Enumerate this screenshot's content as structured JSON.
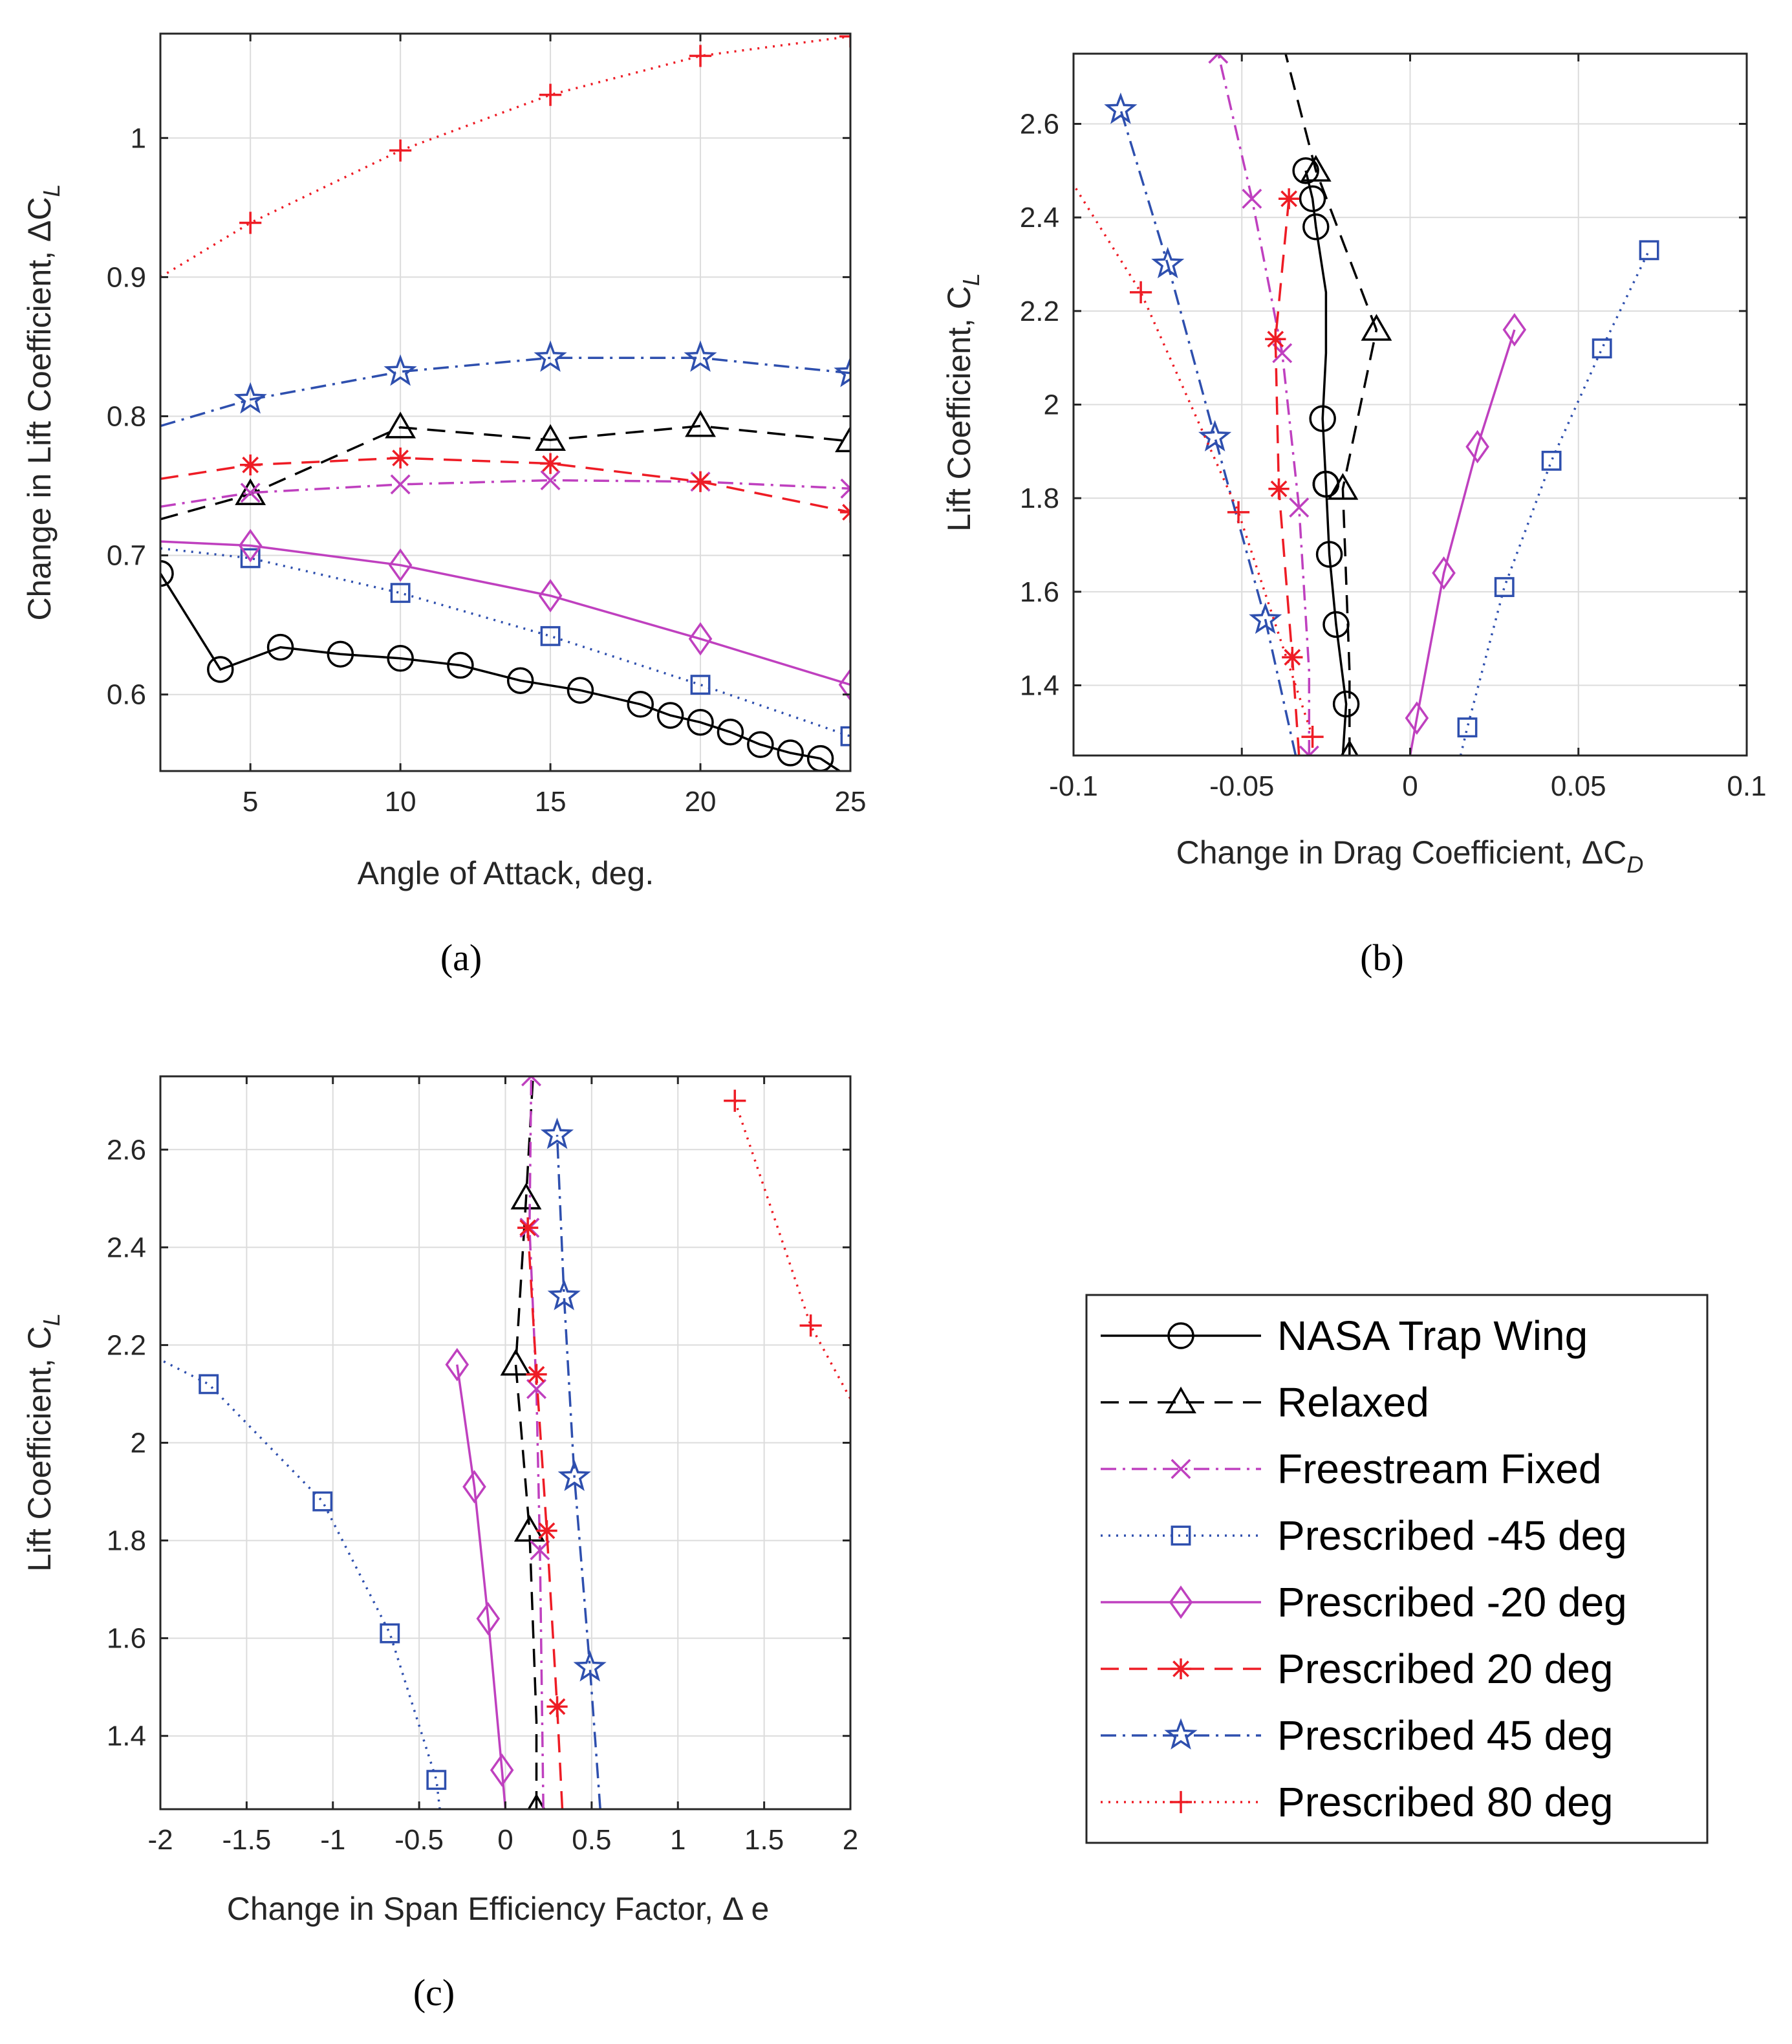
{
  "legend": {
    "entries": [
      {
        "key": "nasa",
        "label": "NASA Trap Wing"
      },
      {
        "key": "relax",
        "label": "Relaxed"
      },
      {
        "key": "ff",
        "label": "Freestream Fixed"
      },
      {
        "key": "pm45",
        "label": "Prescribed -45 deg"
      },
      {
        "key": "pm20",
        "label": "Prescribed -20 deg"
      },
      {
        "key": "p20",
        "label": "Prescribed 20 deg"
      },
      {
        "key": "p45",
        "label": "Prescribed 45 deg"
      },
      {
        "key": "p80",
        "label": "Prescribed 80 deg"
      }
    ]
  },
  "styles": {
    "nasa": {
      "color": "#000000",
      "dash": "",
      "marker": "circle"
    },
    "relax": {
      "color": "#000000",
      "dash": "28,16",
      "marker": "triangle"
    },
    "ff": {
      "color": "#bf40bf",
      "dash": "24,10,4,10",
      "marker": "x"
    },
    "pm45": {
      "color": "#2e4fae",
      "dash": "3,9",
      "marker": "square"
    },
    "pm20": {
      "color": "#bf40bf",
      "dash": "",
      "marker": "diamond"
    },
    "p20": {
      "color": "#ee1c25",
      "dash": "28,16",
      "marker": "asterisk"
    },
    "p45": {
      "color": "#2e4fae",
      "dash": "24,10,4,10",
      "marker": "star"
    },
    "p80": {
      "color": "#ee1c25",
      "dash": "3,9",
      "marker": "plus"
    }
  },
  "chart_data": [
    {
      "panel": "(a)",
      "type": "line",
      "xlabel": "Angle of Attack, deg.",
      "ylabel": "Change in Lift Coefficient,  ΔC",
      "ylabel_sub": "L",
      "xlim": [
        2,
        25
      ],
      "ylim": [
        0.545,
        1.075
      ],
      "xticks": [
        5,
        10,
        15,
        20,
        25
      ],
      "xticklabels": [
        "5",
        "10",
        "15",
        "20",
        "25"
      ],
      "yticks": [
        0.6,
        0.7,
        0.8,
        0.9,
        1.0
      ],
      "yticklabels": [
        "0.6",
        "0.7",
        "0.8",
        "0.9",
        "1"
      ],
      "grid": true,
      "series": [
        {
          "key": "nasa",
          "x": [
            2,
            4,
            6,
            8,
            10,
            12,
            14,
            16,
            18,
            19,
            20,
            21,
            22,
            23,
            24,
            25
          ],
          "y": [
            0.687,
            0.618,
            0.634,
            0.629,
            0.626,
            0.621,
            0.61,
            0.603,
            0.593,
            0.585,
            0.58,
            0.573,
            0.564,
            0.558,
            0.554,
            0.54
          ],
          "mx": [
            2,
            4,
            6,
            8,
            10,
            12,
            14,
            16,
            18,
            19,
            20,
            21,
            22,
            23,
            24
          ]
        },
        {
          "key": "relax",
          "x": [
            2,
            5,
            10,
            15,
            20,
            25
          ],
          "y": [
            0.726,
            0.744,
            0.792,
            0.783,
            0.793,
            0.782
          ],
          "mx": [
            5,
            10,
            15,
            20,
            25
          ]
        },
        {
          "key": "ff",
          "x": [
            2,
            5,
            10,
            15,
            20,
            25
          ],
          "y": [
            0.735,
            0.745,
            0.751,
            0.754,
            0.753,
            0.748
          ],
          "mx": [
            5,
            10,
            15,
            20,
            25
          ]
        },
        {
          "key": "pm45",
          "x": [
            2,
            5,
            10,
            15,
            20,
            25
          ],
          "y": [
            0.705,
            0.698,
            0.673,
            0.642,
            0.607,
            0.57
          ],
          "mx": [
            5,
            10,
            15,
            20,
            25
          ]
        },
        {
          "key": "pm20",
          "x": [
            2,
            5,
            10,
            15,
            20,
            25
          ],
          "y": [
            0.71,
            0.707,
            0.693,
            0.671,
            0.64,
            0.607
          ],
          "mx": [
            5,
            10,
            15,
            20,
            25
          ]
        },
        {
          "key": "p20",
          "x": [
            2,
            5,
            10,
            15,
            20,
            25
          ],
          "y": [
            0.755,
            0.765,
            0.77,
            0.766,
            0.753,
            0.731
          ],
          "mx": [
            5,
            10,
            15,
            20,
            25
          ]
        },
        {
          "key": "p45",
          "x": [
            2,
            5,
            10,
            15,
            20,
            25
          ],
          "y": [
            0.793,
            0.812,
            0.832,
            0.842,
            0.842,
            0.831
          ],
          "mx": [
            5,
            10,
            15,
            20,
            25
          ]
        },
        {
          "key": "p80",
          "x": [
            2,
            5,
            10,
            15,
            20,
            25
          ],
          "y": [
            0.9,
            0.939,
            0.991,
            1.031,
            1.059,
            1.073
          ],
          "mx": [
            5,
            10,
            15,
            20,
            25
          ]
        }
      ]
    },
    {
      "panel": "(b)",
      "type": "line",
      "xlabel": "Change in Drag Coefficient,  ΔC",
      "xlabel_sub": "D",
      "ylabel": "Lift Coefficient,  C",
      "ylabel_sub": "L",
      "xlim": [
        -0.1,
        0.1
      ],
      "ylim": [
        1.25,
        2.75
      ],
      "xticks": [
        -0.1,
        -0.05,
        0,
        0.05,
        0.1
      ],
      "xticklabels": [
        "-0.1",
        "-0.05",
        "0",
        "0.05",
        "0.1"
      ],
      "yticks": [
        1.4,
        1.6,
        1.8,
        2.0,
        2.2,
        2.4,
        2.6
      ],
      "yticklabels": [
        "1.4",
        "1.6",
        "1.8",
        "2",
        "2.2",
        "2.4",
        "2.6"
      ],
      "grid": true,
      "series": [
        {
          "key": "nasa",
          "x": [
            -0.02,
            -0.019,
            -0.022,
            -0.024,
            -0.025,
            -0.026,
            -0.025,
            -0.025,
            -0.028,
            -0.029,
            -0.031
          ],
          "y": [
            1.25,
            1.36,
            1.53,
            1.68,
            1.83,
            1.97,
            2.11,
            2.24,
            2.38,
            2.44,
            2.5
          ],
          "mx": [
            -0.019,
            -0.022,
            -0.024,
            -0.025,
            -0.026,
            -0.025,
            -0.025,
            -0.028,
            -0.029,
            -0.031
          ]
        },
        {
          "key": "relax",
          "x": [
            -0.018,
            -0.018,
            -0.02,
            -0.01,
            -0.028,
            -0.037
          ],
          "y": [
            1.25,
            1.43,
            1.82,
            2.16,
            2.5,
            2.75
          ],
          "mx": [
            -0.018,
            -0.02,
            -0.01,
            -0.028
          ]
        },
        {
          "key": "ff",
          "x": [
            -0.03,
            -0.03,
            -0.033,
            -0.038,
            -0.047,
            -0.057
          ],
          "y": [
            1.25,
            1.43,
            1.78,
            2.11,
            2.44,
            2.75
          ],
          "mx": [
            -0.03,
            -0.033,
            -0.038,
            -0.047,
            -0.057
          ]
        },
        {
          "key": "pm45",
          "x": [
            0.015,
            0.017,
            0.028,
            0.042,
            0.057,
            0.071
          ],
          "y": [
            1.25,
            1.31,
            1.61,
            1.88,
            2.12,
            2.33
          ],
          "mx": [
            0.017,
            0.028,
            0.042,
            0.057,
            0.071
          ]
        },
        {
          "key": "pm20",
          "x": [
            0,
            0.002,
            0.01,
            0.02,
            0.031
          ],
          "y": [
            1.25,
            1.33,
            1.64,
            1.91,
            2.16
          ],
          "mx": [
            0.002,
            0.01,
            0.02,
            0.031
          ]
        },
        {
          "key": "p20",
          "x": [
            -0.033,
            -0.035,
            -0.039,
            -0.04,
            -0.036
          ],
          "y": [
            1.25,
            1.46,
            1.82,
            2.14,
            2.44
          ],
          "mx": [
            -0.035,
            -0.039,
            -0.04,
            -0.036
          ]
        },
        {
          "key": "p45",
          "x": [
            -0.034,
            -0.043,
            -0.058,
            -0.072,
            -0.086
          ],
          "y": [
            1.25,
            1.54,
            1.93,
            2.3,
            2.63
          ],
          "mx": [
            -0.043,
            -0.058,
            -0.072,
            -0.086
          ]
        },
        {
          "key": "p80",
          "x": [
            -0.029,
            -0.051,
            -0.08,
            -0.1
          ],
          "y": [
            1.29,
            1.77,
            2.24,
            2.47
          ],
          "mx": [
            -0.029,
            -0.051,
            -0.08
          ]
        }
      ]
    },
    {
      "panel": "(c)",
      "type": "line",
      "xlabel": "Change in Span Efficiency Factor,  Δ e",
      "ylabel": "Lift Coefficient,  C",
      "ylabel_sub": "L",
      "xlim": [
        -2,
        2
      ],
      "ylim": [
        1.25,
        2.75
      ],
      "xticks": [
        -2,
        -1.5,
        -1,
        -0.5,
        0,
        0.5,
        1,
        1.5,
        2
      ],
      "xticklabels": [
        "-2",
        "-1.5",
        "-1",
        "-0.5",
        "0",
        "0.5",
        "1",
        "1.5",
        "2"
      ],
      "yticks": [
        1.4,
        1.6,
        1.8,
        2.0,
        2.2,
        2.4,
        2.6
      ],
      "yticklabels": [
        "1.4",
        "1.6",
        "1.8",
        "2",
        "2.2",
        "2.4",
        "2.6"
      ],
      "grid": true,
      "series": [
        {
          "key": "relax",
          "x": [
            0.18,
            0.18,
            0.14,
            0.06,
            0.12,
            0.16
          ],
          "y": [
            1.25,
            1.43,
            1.82,
            2.16,
            2.5,
            2.75
          ],
          "mx": [
            0.18,
            0.14,
            0.06,
            0.12
          ]
        },
        {
          "key": "ff",
          "x": [
            0.22,
            0.2,
            0.18,
            0.14,
            0.15
          ],
          "y": [
            1.25,
            1.78,
            2.11,
            2.44,
            2.75
          ],
          "mx": [
            0.2,
            0.18,
            0.14,
            0.15
          ]
        },
        {
          "key": "pm45",
          "x": [
            -0.38,
            -0.4,
            -0.67,
            -1.06,
            -1.72,
            -2.0
          ],
          "y": [
            1.25,
            1.31,
            1.61,
            1.88,
            2.12,
            2.17
          ],
          "mx": [
            -0.4,
            -0.67,
            -1.06,
            -1.72
          ]
        },
        {
          "key": "pm20",
          "x": [
            0.0,
            -0.02,
            -0.1,
            -0.18,
            -0.28
          ],
          "y": [
            1.25,
            1.33,
            1.64,
            1.91,
            2.16
          ],
          "mx": [
            -0.02,
            -0.1,
            -0.18,
            -0.28
          ]
        },
        {
          "key": "p20",
          "x": [
            0.33,
            0.3,
            0.24,
            0.18,
            0.13
          ],
          "y": [
            1.25,
            1.46,
            1.82,
            2.14,
            2.44
          ],
          "mx": [
            0.3,
            0.24,
            0.18,
            0.13
          ]
        },
        {
          "key": "p45",
          "x": [
            0.55,
            0.49,
            0.4,
            0.34,
            0.3
          ],
          "y": [
            1.25,
            1.54,
            1.93,
            2.3,
            2.63
          ],
          "mx": [
            0.49,
            0.4,
            0.34,
            0.3
          ]
        },
        {
          "key": "p80",
          "x": [
            1.33,
            1.77,
            2.0
          ],
          "y": [
            2.7,
            2.24,
            2.09
          ],
          "mx": [
            1.33,
            1.77
          ]
        }
      ]
    }
  ]
}
